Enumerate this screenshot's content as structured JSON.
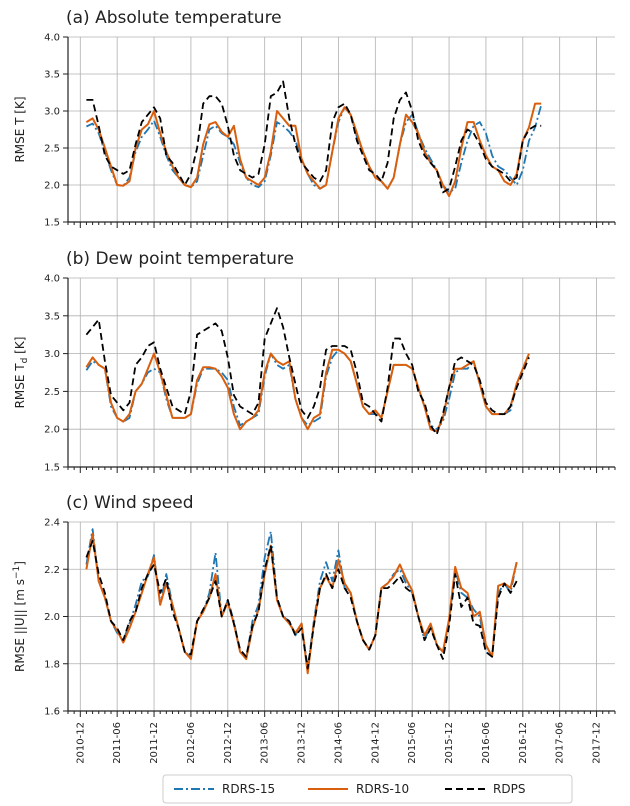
{
  "colors": {
    "RDRS-15": "#1f77b4",
    "RDRS-10": "#d95f0e",
    "RDPS": "#000000",
    "grid": "#b0b0b0",
    "axes": "#222222"
  },
  "legend": {
    "placement": "bottom",
    "entries": [
      {
        "name": "RDRS-15",
        "style": "dashdot"
      },
      {
        "name": "RDRS-10",
        "style": "solid"
      },
      {
        "name": "RDPS",
        "style": "dashed"
      }
    ]
  },
  "x_tick_labels": [
    "2010-12",
    "2011-06",
    "2011-12",
    "2012-06",
    "2012-12",
    "2013-06",
    "2013-12",
    "2014-06",
    "2014-12",
    "2015-06",
    "2015-12",
    "2016-06",
    "2016-12",
    "2017-06",
    "2017-12"
  ],
  "chart_data": [
    {
      "type": "line",
      "title": "(a) Absolute temperature",
      "ylabel": "RMSE T [K]",
      "ylim": [
        1.5,
        4.0
      ],
      "yticks": [
        "1.5",
        "2.0",
        "2.5",
        "3.0",
        "3.5",
        "4.0"
      ],
      "grid": true,
      "x_start": "2011-01",
      "x_step": "1 month",
      "series": [
        {
          "name": "RDRS-15",
          "values": [
            2.79,
            2.83,
            2.7,
            2.45,
            2.2,
            2.0,
            1.99,
            2.1,
            2.45,
            2.65,
            2.75,
            2.87,
            2.65,
            2.4,
            2.2,
            2.1,
            2.0,
            1.97,
            2.05,
            2.4,
            2.75,
            2.8,
            2.7,
            2.65,
            2.55,
            2.3,
            2.1,
            2.0,
            1.97,
            2.05,
            2.4,
            2.85,
            2.8,
            2.72,
            2.6,
            2.35,
            2.15,
            2.0,
            1.95,
            2.0,
            2.45,
            2.85,
            3.05,
            2.95,
            2.65,
            2.45,
            2.25,
            2.1,
            2.05,
            1.95,
            2.1,
            2.55,
            2.85,
            2.95,
            2.7,
            2.5,
            2.35,
            2.2,
            2.0,
            1.9,
            1.95,
            2.3,
            2.6,
            2.8,
            2.85,
            2.7,
            2.4,
            2.25,
            2.2,
            2.1,
            2.0,
            2.2,
            2.6,
            2.78,
            3.08
          ]
        },
        {
          "name": "RDRS-10",
          "values": [
            2.85,
            2.9,
            2.75,
            2.5,
            2.25,
            2.0,
            1.99,
            2.05,
            2.5,
            2.75,
            2.82,
            3.0,
            2.7,
            2.45,
            2.25,
            2.1,
            2.0,
            1.97,
            2.1,
            2.55,
            2.82,
            2.85,
            2.72,
            2.65,
            2.8,
            2.35,
            2.1,
            2.05,
            2.0,
            2.1,
            2.45,
            3.0,
            2.9,
            2.8,
            2.8,
            2.35,
            2.15,
            2.05,
            1.95,
            2.0,
            2.45,
            2.9,
            3.05,
            2.95,
            2.7,
            2.45,
            2.25,
            2.1,
            2.05,
            1.95,
            2.1,
            2.55,
            2.95,
            2.85,
            2.7,
            2.45,
            2.3,
            2.2,
            2.0,
            1.85,
            2.05,
            2.5,
            2.85,
            2.85,
            2.6,
            2.4,
            2.25,
            2.2,
            2.05,
            2.0,
            2.15,
            2.6,
            2.78,
            3.1,
            3.1
          ]
        },
        {
          "name": "RDPS",
          "values": [
            3.15,
            3.15,
            2.8,
            2.4,
            2.25,
            2.2,
            2.15,
            2.2,
            2.55,
            2.85,
            2.95,
            3.05,
            2.9,
            2.4,
            2.3,
            2.15,
            2.0,
            2.15,
            2.5,
            3.1,
            3.2,
            3.2,
            3.1,
            2.8,
            2.4,
            2.2,
            2.15,
            2.1,
            2.15,
            2.55,
            3.2,
            3.25,
            3.4,
            2.9,
            2.55,
            2.3,
            2.2,
            2.1,
            2.05,
            2.2,
            2.85,
            3.05,
            3.1,
            2.95,
            2.6,
            2.4,
            2.2,
            2.15,
            2.05,
            2.3,
            2.9,
            3.15,
            3.25,
            3.0,
            2.6,
            2.4,
            2.3,
            2.2,
            1.9,
            1.95,
            2.25,
            2.6,
            2.75,
            2.7,
            2.55,
            2.35,
            2.25,
            2.2,
            2.15,
            2.05,
            2.1,
            2.6,
            2.75,
            2.8,
            2.8
          ]
        }
      ]
    },
    {
      "type": "line",
      "title": "(b) Dew point temperature",
      "ylabel": "RMSE T_d [K]",
      "ylim": [
        1.5,
        4.0
      ],
      "yticks": [
        "1.5",
        "2.0",
        "2.5",
        "3.0",
        "3.5",
        "4.0"
      ],
      "grid": true,
      "x_start": "2011-01",
      "x_step": "1 month",
      "series": [
        {
          "name": "RDRS-15",
          "values": [
            2.78,
            2.9,
            2.85,
            2.8,
            2.3,
            2.15,
            2.1,
            2.15,
            2.5,
            2.6,
            2.75,
            2.8,
            2.75,
            2.4,
            2.15,
            2.15,
            2.15,
            2.2,
            2.6,
            2.8,
            2.8,
            2.8,
            2.75,
            2.65,
            2.3,
            2.05,
            2.1,
            2.15,
            2.2,
            2.7,
            3.0,
            2.85,
            2.8,
            2.85,
            2.4,
            2.15,
            2.05,
            2.1,
            2.15,
            2.7,
            2.95,
            3.05,
            3.0,
            2.9,
            2.6,
            2.3,
            2.2,
            2.2,
            2.15,
            2.5,
            2.85,
            2.85,
            2.85,
            2.8,
            2.55,
            2.3,
            2.05,
            2.0,
            2.1,
            2.4,
            2.75,
            2.8,
            2.8,
            2.9,
            2.6,
            2.3,
            2.2,
            2.2,
            2.2,
            2.25,
            2.6,
            2.8,
            3.0
          ]
        },
        {
          "name": "RDRS-10",
          "values": [
            2.82,
            2.95,
            2.85,
            2.8,
            2.35,
            2.15,
            2.1,
            2.2,
            2.5,
            2.6,
            2.8,
            3.0,
            2.75,
            2.45,
            2.15,
            2.15,
            2.15,
            2.2,
            2.65,
            2.82,
            2.82,
            2.8,
            2.7,
            2.55,
            2.2,
            2.0,
            2.1,
            2.15,
            2.25,
            2.75,
            3.0,
            2.9,
            2.85,
            2.9,
            2.4,
            2.15,
            2.0,
            2.15,
            2.2,
            2.75,
            3.05,
            3.05,
            3.0,
            2.9,
            2.6,
            2.3,
            2.2,
            2.25,
            2.15,
            2.5,
            2.85,
            2.85,
            2.85,
            2.8,
            2.55,
            2.3,
            2.0,
            1.97,
            2.15,
            2.55,
            2.8,
            2.8,
            2.85,
            2.9,
            2.6,
            2.3,
            2.2,
            2.2,
            2.2,
            2.3,
            2.6,
            2.8,
            3.0
          ]
        },
        {
          "name": "RDPS",
          "values": [
            3.25,
            3.35,
            3.45,
            2.9,
            2.45,
            2.35,
            2.25,
            2.35,
            2.85,
            2.95,
            3.1,
            3.15,
            2.8,
            2.55,
            2.3,
            2.25,
            2.2,
            2.5,
            3.25,
            3.3,
            3.35,
            3.4,
            3.3,
            2.95,
            2.45,
            2.3,
            2.25,
            2.2,
            2.35,
            3.2,
            3.4,
            3.6,
            3.35,
            2.95,
            2.6,
            2.25,
            2.15,
            2.3,
            2.55,
            3.05,
            3.1,
            3.1,
            3.1,
            3.05,
            2.75,
            2.35,
            2.3,
            2.2,
            2.1,
            2.55,
            3.2,
            3.2,
            3.0,
            2.85,
            2.5,
            2.35,
            2.05,
            1.93,
            2.2,
            2.55,
            2.9,
            2.95,
            2.9,
            2.85,
            2.65,
            2.35,
            2.25,
            2.2,
            2.2,
            2.3,
            2.55,
            2.75,
            2.95
          ]
        }
      ]
    },
    {
      "type": "line",
      "title": "(c) Wind speed",
      "ylabel": "RMSE ||U|| [m s^-1]",
      "ylim": [
        1.6,
        2.4
      ],
      "yticks": [
        "1.6",
        "1.8",
        "2.0",
        "2.2",
        "2.4"
      ],
      "grid": true,
      "x_start": "2011-01",
      "x_step": "1 month",
      "series": [
        {
          "name": "RDRS-15",
          "values": [
            2.22,
            2.37,
            2.15,
            2.08,
            1.98,
            1.93,
            1.9,
            1.97,
            2.05,
            2.15,
            2.17,
            2.26,
            2.05,
            2.18,
            2.05,
            1.95,
            1.85,
            1.83,
            1.98,
            2.02,
            2.1,
            2.27,
            2.0,
            2.07,
            1.98,
            1.85,
            1.82,
            1.98,
            2.05,
            2.25,
            2.36,
            2.08,
            2.0,
            1.98,
            1.92,
            1.97,
            1.78,
            1.98,
            2.15,
            2.23,
            2.15,
            2.28,
            2.12,
            2.1,
            1.98,
            1.9,
            1.86,
            1.92,
            2.12,
            2.14,
            2.18,
            2.2,
            2.14,
            2.1,
            2.0,
            1.9,
            1.96,
            1.88,
            1.85,
            1.98,
            2.2,
            2.1,
            2.08,
            2.03,
            2.0,
            1.85,
            1.83,
            2.1,
            2.14,
            2.1,
            2.23
          ]
        },
        {
          "name": "RDRS-10",
          "values": [
            2.2,
            2.35,
            2.15,
            2.08,
            1.98,
            1.94,
            1.89,
            1.95,
            2.02,
            2.1,
            2.18,
            2.25,
            2.05,
            2.14,
            2.05,
            1.95,
            1.85,
            1.82,
            1.98,
            2.02,
            2.08,
            2.18,
            2.0,
            2.06,
            1.97,
            1.85,
            1.82,
            1.95,
            2.03,
            2.18,
            2.3,
            2.07,
            2.0,
            1.97,
            1.93,
            1.97,
            1.76,
            1.97,
            2.12,
            2.17,
            2.12,
            2.24,
            2.14,
            2.1,
            1.98,
            1.9,
            1.86,
            1.92,
            2.12,
            2.14,
            2.17,
            2.22,
            2.16,
            2.11,
            2.0,
            1.92,
            1.97,
            1.88,
            1.85,
            1.99,
            2.21,
            2.12,
            2.1,
            2.0,
            2.02,
            1.88,
            1.83,
            2.13,
            2.14,
            2.12,
            2.23
          ]
        },
        {
          "name": "RDPS",
          "values": [
            2.25,
            2.32,
            2.18,
            2.1,
            1.98,
            1.95,
            1.9,
            1.98,
            2.02,
            2.12,
            2.18,
            2.22,
            2.1,
            2.16,
            2.02,
            1.95,
            1.85,
            1.84,
            1.98,
            2.03,
            2.08,
            2.15,
            2.0,
            2.07,
            1.97,
            1.86,
            1.83,
            1.96,
            2.02,
            2.2,
            2.3,
            2.08,
            2.0,
            1.98,
            1.92,
            1.95,
            1.78,
            1.96,
            2.12,
            2.18,
            2.12,
            2.2,
            2.12,
            2.08,
            1.98,
            1.9,
            1.86,
            1.92,
            2.12,
            2.12,
            2.14,
            2.17,
            2.12,
            2.1,
            2.0,
            1.9,
            1.95,
            1.88,
            1.82,
            1.96,
            2.18,
            2.04,
            2.08,
            1.97,
            1.96,
            1.85,
            1.83,
            2.08,
            2.14,
            2.1,
            2.15
          ]
        }
      ]
    }
  ]
}
